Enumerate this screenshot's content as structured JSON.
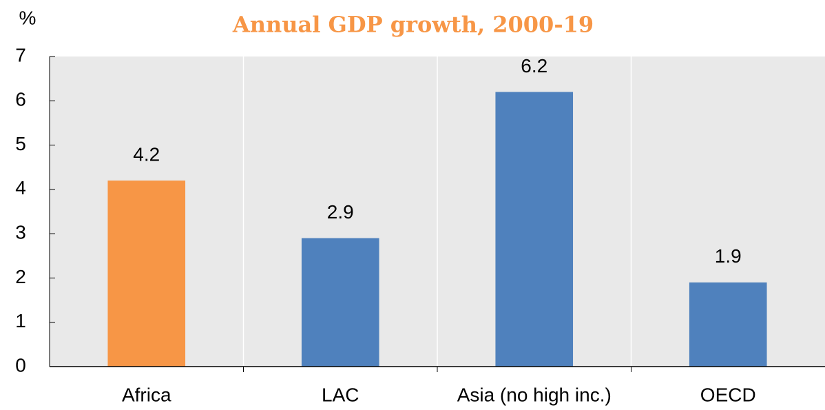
{
  "chart_data": {
    "type": "bar",
    "title": "Annual GDP growth, 2000-19",
    "y_label": "%",
    "categories": [
      "Africa",
      "LAC",
      "Asia (no high inc.)",
      "OECD"
    ],
    "values": [
      4.2,
      2.9,
      6.2,
      1.9
    ],
    "colors": [
      "#f79646",
      "#4f81bd",
      "#4f81bd",
      "#4f81bd"
    ],
    "ylim": [
      0,
      7
    ],
    "yticks": [
      0,
      1,
      2,
      3,
      4,
      5,
      6,
      7
    ]
  }
}
